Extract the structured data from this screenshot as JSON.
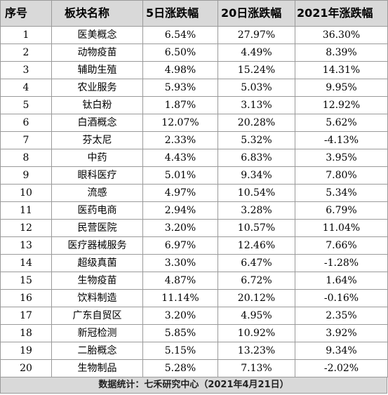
{
  "headers": [
    "序号",
    "板块名称",
    "5日涨跌幅",
    "20日涨跌幅",
    "2021年涨跌幅"
  ],
  "rows": [
    [
      "1",
      "医美概念",
      "6.54%",
      "27.97%",
      "36.30%"
    ],
    [
      "2",
      "动物疫苗",
      "6.50%",
      "4.49%",
      "8.39%"
    ],
    [
      "3",
      "辅助生殖",
      "4.98%",
      "15.24%",
      "14.31%"
    ],
    [
      "4",
      "农业服务",
      "5.93%",
      "5.03%",
      "9.95%"
    ],
    [
      "5",
      "钛白粉",
      "1.87%",
      "3.13%",
      "12.92%"
    ],
    [
      "6",
      "白酒概念",
      "12.07%",
      "20.28%",
      "5.62%"
    ],
    [
      "7",
      "芬太尼",
      "2.33%",
      "5.32%",
      "-4.13%"
    ],
    [
      "8",
      "中药",
      "4.43%",
      "6.83%",
      "3.95%"
    ],
    [
      "9",
      "眼科医疗",
      "5.01%",
      "9.34%",
      "7.80%"
    ],
    [
      "10",
      "流感",
      "4.97%",
      "10.54%",
      "5.34%"
    ],
    [
      "11",
      "医药电商",
      "2.94%",
      "3.28%",
      "6.79%"
    ],
    [
      "12",
      "民营医院",
      "3.20%",
      "10.57%",
      "11.04%"
    ],
    [
      "13",
      "医疗器械服务",
      "6.97%",
      "12.46%",
      "7.66%"
    ],
    [
      "14",
      "超级真菌",
      "3.30%",
      "6.47%",
      "-1.28%"
    ],
    [
      "15",
      "生物疫苗",
      "4.87%",
      "6.72%",
      "1.64%"
    ],
    [
      "16",
      "饮料制造",
      "11.14%",
      "20.12%",
      "-0.16%"
    ],
    [
      "17",
      "广东自贸区",
      "3.20%",
      "4.95%",
      "2.35%"
    ],
    [
      "18",
      "新冠检测",
      "5.85%",
      "10.92%",
      "3.92%"
    ],
    [
      "19",
      "二胎概念",
      "5.15%",
      "13.23%",
      "9.34%"
    ],
    [
      "20",
      "生物制品",
      "5.28%",
      "7.13%",
      "-2.02%"
    ]
  ],
  "footer": "数据统计：七禾研究中心（2021年4月21日）",
  "colors": {
    "header_bg": "#d9d9d9",
    "footer_bg": "#d9d9d9",
    "border": "#9a9a9a"
  }
}
